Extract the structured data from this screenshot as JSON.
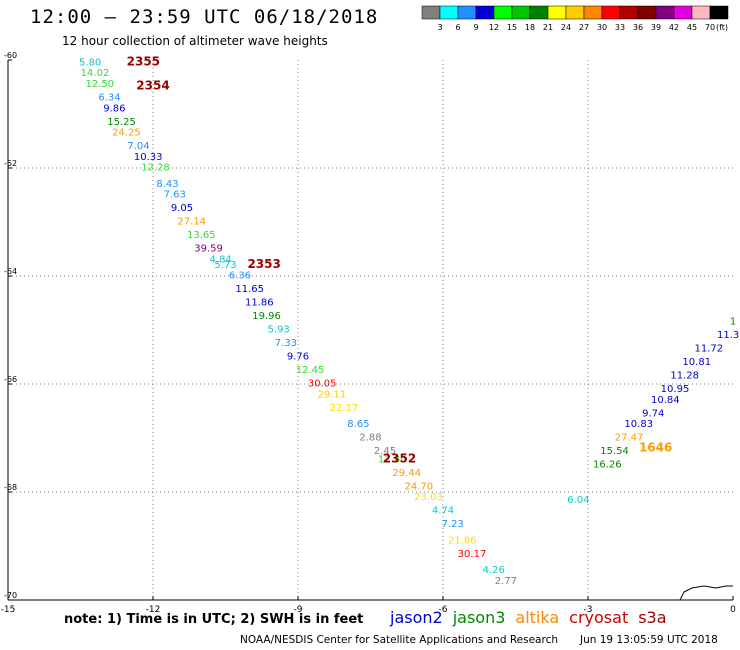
{
  "header": {
    "title": "12:00 – 23:59 UTC 06/18/2018",
    "subtitle": "12 hour collection of altimeter wave heights"
  },
  "legend": {
    "unit": "(ft)",
    "bins": [
      {
        "label": "3",
        "color": "#808080"
      },
      {
        "label": "6",
        "color": "#00ffff"
      },
      {
        "label": "9",
        "color": "#1e90ff"
      },
      {
        "label": "12",
        "color": "#0000dd"
      },
      {
        "label": "15",
        "color": "#00ff00"
      },
      {
        "label": "18",
        "color": "#00c800"
      },
      {
        "label": "21",
        "color": "#008000"
      },
      {
        "label": "24",
        "color": "#ffff00"
      },
      {
        "label": "27",
        "color": "#ffcc00"
      },
      {
        "label": "30",
        "color": "#ff8800"
      },
      {
        "label": "33",
        "color": "#ff0000"
      },
      {
        "label": "36",
        "color": "#b20000"
      },
      {
        "label": "39",
        "color": "#800000"
      },
      {
        "label": "42",
        "color": "#800080"
      },
      {
        "label": "45",
        "color": "#e000e0"
      },
      {
        "label": "70",
        "color": "#ffb6c1"
      },
      {
        "label": "",
        "color": "#000000"
      }
    ]
  },
  "footer": {
    "note": "note: 1) Time is in UTC; 2) SWH is in feet",
    "satellites": [
      {
        "name": "jason2",
        "color": "#0000cc"
      },
      {
        "name": "jason3",
        "color": "#008800"
      },
      {
        "name": "altika",
        "color": "#ff8800"
      },
      {
        "name": "cryosat",
        "color": "#cc0000"
      },
      {
        "name": "s3a",
        "color": "#990000"
      }
    ],
    "credit": "NOAA/NESDIS Center for Satellite Applications and Research",
    "timestamp": "Jun 19 13:05:59 UTC 2018"
  },
  "chart_data": {
    "type": "scatter",
    "x_ticks": [
      "-15",
      "-12",
      "-9",
      "-6",
      "-3",
      "0"
    ],
    "y_ticks": [
      "-60",
      "-62",
      "-64",
      "-66",
      "-68",
      "-70"
    ],
    "xlim": [
      -15,
      0
    ],
    "ylim": [
      -70,
      -60
    ],
    "grid": "dotted",
    "points": [
      {
        "x": -13.3,
        "y": -60.1,
        "label": "5.80",
        "color": "#00cccc"
      },
      {
        "x": -13.2,
        "y": -60.3,
        "label": "14.02",
        "color": "#33dd33"
      },
      {
        "x": -13.1,
        "y": -60.5,
        "label": "12.50",
        "color": "#33dd33"
      },
      {
        "x": -12.9,
        "y": -60.75,
        "label": "6.34",
        "color": "#1e90ff"
      },
      {
        "x": -12.8,
        "y": -60.95,
        "label": "9.86",
        "color": "#0000cc"
      },
      {
        "x": -12.65,
        "y": -61.2,
        "label": "15.25",
        "color": "#008800"
      },
      {
        "x": -12.55,
        "y": -61.4,
        "label": "24.25",
        "color": "#ff9900"
      },
      {
        "x": -12.3,
        "y": -61.65,
        "label": "7.04",
        "color": "#1e90ff"
      },
      {
        "x": -12.1,
        "y": -61.85,
        "label": "10.33",
        "color": "#0000cc"
      },
      {
        "x": -11.95,
        "y": -62.05,
        "label": "12.28",
        "color": "#33dd33"
      },
      {
        "x": -11.7,
        "y": -62.35,
        "label": "8.43",
        "color": "#1e90ff"
      },
      {
        "x": -11.55,
        "y": -62.55,
        "label": "7.63",
        "color": "#1e90ff"
      },
      {
        "x": -11.4,
        "y": -62.8,
        "label": "9.05",
        "color": "#0000cc"
      },
      {
        "x": -11.2,
        "y": -63.05,
        "label": "27.14",
        "color": "#ff9900"
      },
      {
        "x": -11.0,
        "y": -63.3,
        "label": "13.65",
        "color": "#33dd33"
      },
      {
        "x": -10.85,
        "y": -63.55,
        "label": "39.59",
        "color": "#800080"
      },
      {
        "x": -10.6,
        "y": -63.75,
        "label": "4.84",
        "color": "#00cccc"
      },
      {
        "x": -10.5,
        "y": -63.85,
        "label": "5.73",
        "color": "#00cccc"
      },
      {
        "x": -10.2,
        "y": -64.05,
        "label": "6.36",
        "color": "#1e90ff"
      },
      {
        "x": -10.0,
        "y": -64.3,
        "label": "11.65",
        "color": "#0000cc"
      },
      {
        "x": -9.8,
        "y": -64.55,
        "label": "11.86",
        "color": "#0000cc"
      },
      {
        "x": -9.65,
        "y": -64.8,
        "label": "19.96",
        "color": "#008800"
      },
      {
        "x": -9.4,
        "y": -65.05,
        "label": "5.93",
        "color": "#00cccc"
      },
      {
        "x": -9.25,
        "y": -65.3,
        "label": "7.33",
        "color": "#1e90ff"
      },
      {
        "x": -9.0,
        "y": -65.55,
        "label": "9.76",
        "color": "#0000cc"
      },
      {
        "x": -8.75,
        "y": -65.8,
        "label": "12.45",
        "color": "#33dd33"
      },
      {
        "x": -8.5,
        "y": -66.05,
        "label": "30.05",
        "color": "#ff0000"
      },
      {
        "x": -8.3,
        "y": -66.25,
        "label": "29.11",
        "color": "#ffcc00"
      },
      {
        "x": -8.05,
        "y": -66.5,
        "label": "22.17",
        "color": "#ffdd00"
      },
      {
        "x": -7.75,
        "y": -66.8,
        "label": "8.65",
        "color": "#1e90ff"
      },
      {
        "x": -7.5,
        "y": -67.05,
        "label": "2.88",
        "color": "#808080"
      },
      {
        "x": -7.2,
        "y": -67.3,
        "label": "2.45",
        "color": "#808080"
      },
      {
        "x": -7.05,
        "y": -67.45,
        "label": "12.80",
        "color": "#33dd33"
      },
      {
        "x": -6.75,
        "y": -67.7,
        "label": "29.44",
        "color": "#ff9900"
      },
      {
        "x": -6.5,
        "y": -67.95,
        "label": "24.70",
        "color": "#ff9900"
      },
      {
        "x": -6.3,
        "y": -68.15,
        "label": "23.03",
        "color": "#ffdd00"
      },
      {
        "x": -6.0,
        "y": -68.4,
        "label": "4.74",
        "color": "#00cccc"
      },
      {
        "x": -5.8,
        "y": -68.65,
        "label": "7.23",
        "color": "#1e90ff"
      },
      {
        "x": -5.6,
        "y": -68.95,
        "label": "21.86",
        "color": "#ffdd00"
      },
      {
        "x": -5.4,
        "y": -69.2,
        "label": "30.17",
        "color": "#ff0000"
      },
      {
        "x": -4.95,
        "y": -69.5,
        "label": "4.26",
        "color": "#00cccc"
      },
      {
        "x": -4.7,
        "y": -69.7,
        "label": "2.77",
        "color": "#808080"
      },
      {
        "x": -3.2,
        "y": -68.2,
        "label": "6.04",
        "color": "#00cccc"
      },
      {
        "x": -2.6,
        "y": -67.55,
        "label": "16.26",
        "color": "#008800"
      },
      {
        "x": -2.45,
        "y": -67.3,
        "label": "15.54",
        "color": "#008800"
      },
      {
        "x": -2.15,
        "y": -67.05,
        "label": "27.47",
        "color": "#ff9900"
      },
      {
        "x": -1.95,
        "y": -66.8,
        "label": "10.83",
        "color": "#0000cc"
      },
      {
        "x": -1.65,
        "y": -66.6,
        "label": "9.74",
        "color": "#0000cc"
      },
      {
        "x": -1.4,
        "y": -66.35,
        "label": "10.84",
        "color": "#0000cc"
      },
      {
        "x": -1.2,
        "y": -66.15,
        "label": "10.95",
        "color": "#0000cc"
      },
      {
        "x": -1.0,
        "y": -65.9,
        "label": "11.28",
        "color": "#0000cc"
      },
      {
        "x": -0.75,
        "y": -65.65,
        "label": "10.81",
        "color": "#0000cc"
      },
      {
        "x": -0.5,
        "y": -65.4,
        "label": "11.72",
        "color": "#0000cc"
      },
      {
        "x": -0.1,
        "y": -65.15,
        "label": "11.3",
        "color": "#0000cc"
      },
      {
        "x": 0.0,
        "y": -64.9,
        "label": "1",
        "color": "#008800"
      }
    ],
    "time_labels": [
      {
        "x": -12.2,
        "y": -60.1,
        "label": "2355",
        "color": "#990000"
      },
      {
        "x": -12.0,
        "y": -60.55,
        "label": "2354",
        "color": "#990000"
      },
      {
        "x": -9.7,
        "y": -63.85,
        "label": "2353",
        "color": "#990000"
      },
      {
        "x": -6.9,
        "y": -67.45,
        "label": "2352",
        "color": "#990000"
      },
      {
        "x": -1.6,
        "y": -67.25,
        "label": "1646",
        "color": "#ff9900"
      }
    ]
  }
}
